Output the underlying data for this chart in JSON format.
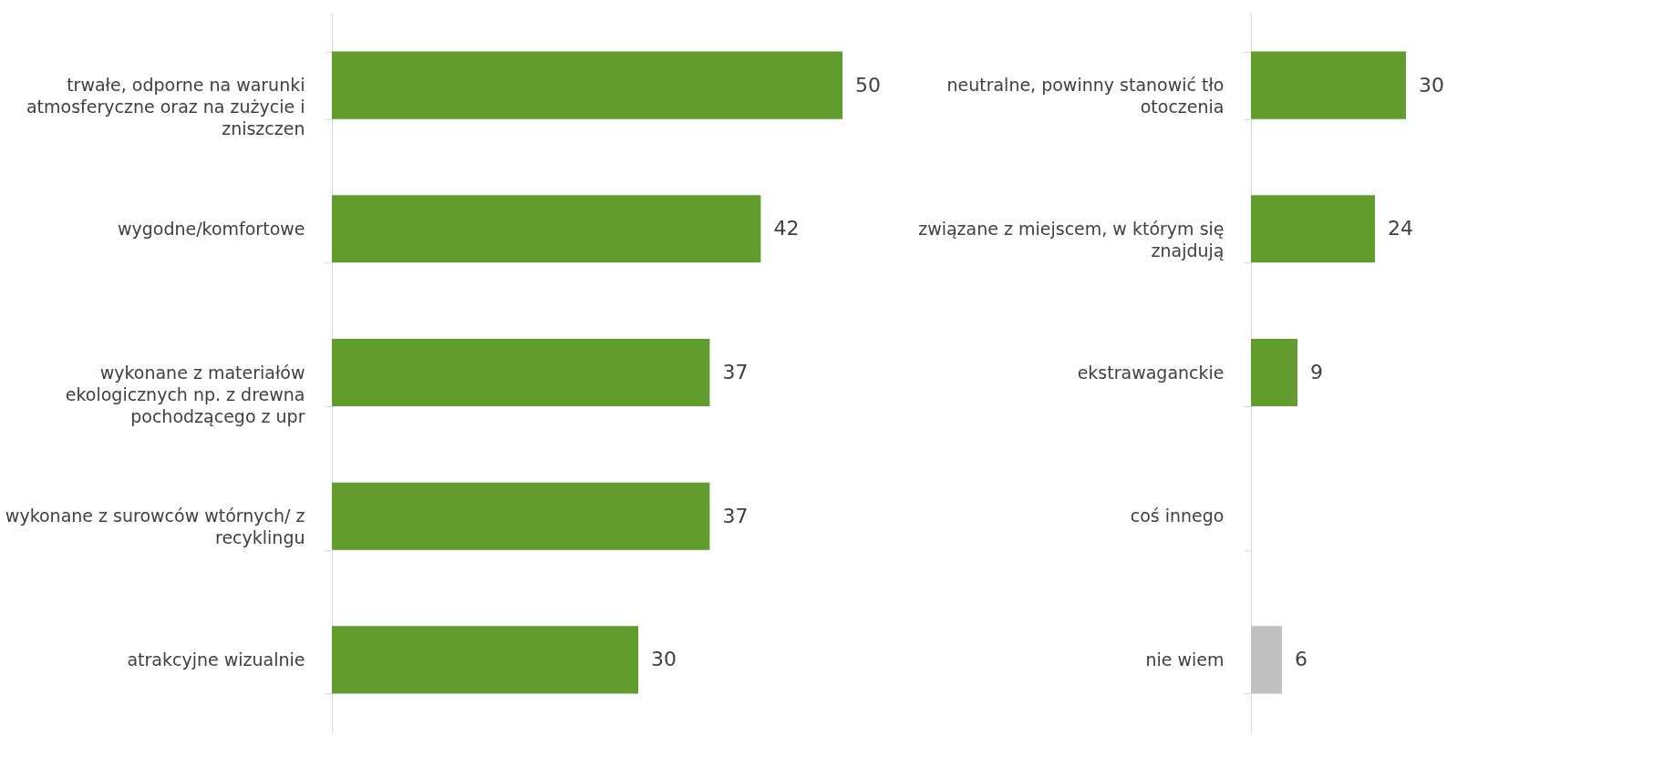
{
  "chart_data": [
    {
      "type": "bar",
      "orientation": "horizontal",
      "data_labels": true,
      "grid": false,
      "tick_labels": "y",
      "categories": [
        "trwałe, odporne na warunki atmosferyczne oraz na zużycie i zniszczen",
        "wygodne/komfortowe",
        "wykonane z materiałów ekologicznych np. z drewna pochodzącego z upr",
        "wykonane z surowców wtórnych/ z recyklingu",
        "atrakcyjne wizualnie"
      ],
      "values": [
        50,
        42,
        37,
        37,
        30
      ],
      "colors": [
        "#629c2f",
        "#629c2f",
        "#629c2f",
        "#629c2f",
        "#629c2f"
      ]
    },
    {
      "type": "bar",
      "orientation": "horizontal",
      "data_labels": true,
      "grid": false,
      "tick_labels": "y",
      "categories": [
        "neutralne, powinny stanowić tło otoczenia",
        "związane z miejscem, w którym się znajdują",
        "ekstrawaganckie",
        "coś innego",
        "nie wiem"
      ],
      "values": [
        30,
        24,
        9,
        null,
        6
      ],
      "colors": [
        "#629c2f",
        "#629c2f",
        "#629c2f",
        "#629c2f",
        "#c0c0c0"
      ]
    }
  ]
}
